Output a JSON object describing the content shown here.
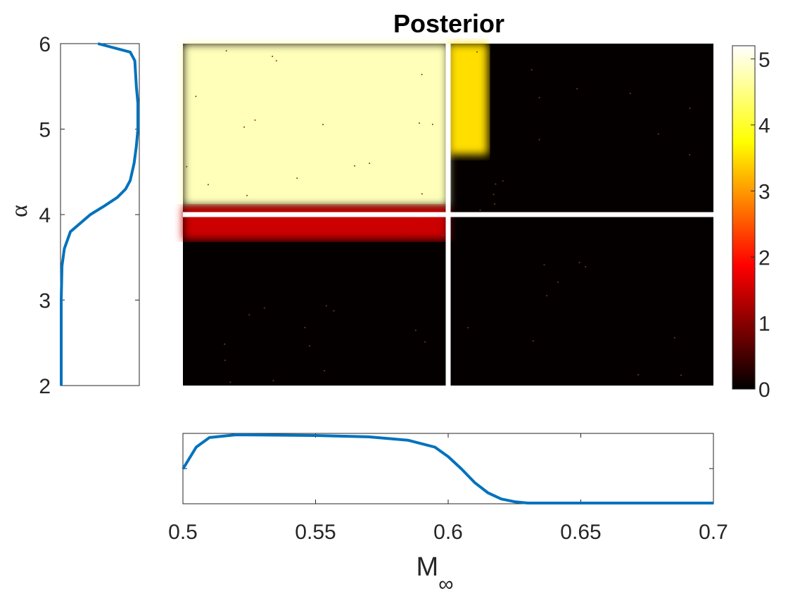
{
  "chart_data": [
    {
      "panel": "posterior-heatmap",
      "type": "heatmap",
      "title": "Posterior",
      "xlim": [
        0.5,
        0.7
      ],
      "ylim": [
        2,
        6
      ],
      "colormap": "hot",
      "colorbar": {
        "ticks": [
          0,
          1,
          2,
          3,
          4,
          5
        ],
        "range": [
          0,
          5.2
        ]
      },
      "true_value": {
        "x": 0.6,
        "y": 4.0,
        "color": "#ffffff"
      },
      "description_regions": [
        {
          "x_range": [
            0.5,
            0.6
          ],
          "y_range": [
            4.1,
            6
          ],
          "value": 4.8
        },
        {
          "x_range": [
            0.6,
            0.615
          ],
          "y_range": [
            4.7,
            6
          ],
          "value": 3.5
        },
        {
          "x_range": [
            0.5,
            0.6
          ],
          "y_range": [
            3.7,
            4.1
          ],
          "value": 1.5
        }
      ]
    },
    {
      "panel": "alpha-marginal",
      "type": "line",
      "ylabel": "α",
      "ylim": [
        2,
        6
      ],
      "yticks": [
        2,
        3,
        4,
        5,
        6
      ],
      "series": [
        {
          "color": "#0072BD",
          "points": [
            [
              2.0,
              0.0
            ],
            [
              3.0,
              0.0
            ],
            [
              3.4,
              0.01
            ],
            [
              3.6,
              0.04
            ],
            [
              3.8,
              0.12
            ],
            [
              4.0,
              0.38
            ],
            [
              4.1,
              0.56
            ],
            [
              4.2,
              0.73
            ],
            [
              4.3,
              0.84
            ],
            [
              4.4,
              0.9
            ],
            [
              4.6,
              0.95
            ],
            [
              4.8,
              0.98
            ],
            [
              5.0,
              1.0
            ],
            [
              5.3,
              1.0
            ],
            [
              5.5,
              0.98
            ],
            [
              5.8,
              0.96
            ],
            [
              5.9,
              0.9
            ],
            [
              6.0,
              0.48
            ]
          ]
        }
      ]
    },
    {
      "panel": "mach-marginal",
      "type": "line",
      "xlabel": "M∞",
      "xlabel_main": "M",
      "xlabel_sub": "∞",
      "xlim": [
        0.5,
        0.7
      ],
      "xticks": [
        0.5,
        0.55,
        0.6,
        0.65,
        0.7
      ],
      "xticklabels": [
        "0.5",
        "0.55",
        "0.6",
        "0.65",
        "0.7"
      ],
      "series": [
        {
          "color": "#0072BD",
          "points": [
            [
              0.5,
              0.5
            ],
            [
              0.505,
              0.82
            ],
            [
              0.51,
              0.96
            ],
            [
              0.52,
              1.0
            ],
            [
              0.55,
              0.99
            ],
            [
              0.57,
              0.97
            ],
            [
              0.585,
              0.92
            ],
            [
              0.595,
              0.82
            ],
            [
              0.6,
              0.68
            ],
            [
              0.605,
              0.5
            ],
            [
              0.61,
              0.3
            ],
            [
              0.615,
              0.15
            ],
            [
              0.62,
              0.06
            ],
            [
              0.625,
              0.02
            ],
            [
              0.63,
              0.0
            ],
            [
              0.7,
              0.0
            ]
          ]
        }
      ]
    }
  ]
}
